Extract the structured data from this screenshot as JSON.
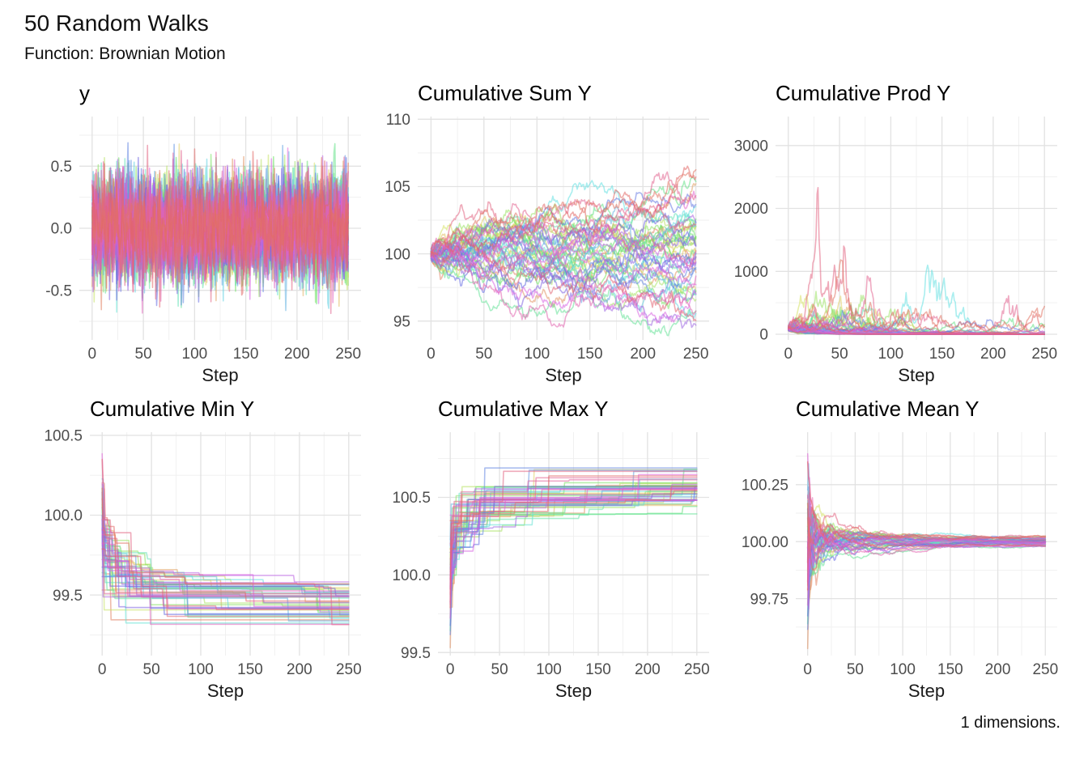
{
  "header": {
    "title": "50 Random Walks",
    "subtitle": "Function: Brownian Motion",
    "caption": "1 dimensions."
  },
  "chart_data": {
    "type": "line",
    "description": "Six-panel grid; each panel overlays the same 50 random-walk series transformed by a cumulative statistic.",
    "x": {
      "label": "Step",
      "ticks": [
        0,
        50,
        100,
        150,
        200,
        250
      ],
      "domain": [
        -12.5,
        262.5
      ]
    },
    "series": {
      "count": 50,
      "steps": 250,
      "generator": "brownian-motion",
      "increment_distribution": "normal(mean 0, sd 0.2)",
      "initial_value": 100,
      "seed": 42,
      "palette": "ggplot-hue-rainbow",
      "line_alpha": 0.55
    },
    "panels": [
      {
        "id": "y",
        "title": "y",
        "stat": "y",
        "y_ticks": {
          "values": [
            -0.5,
            0,
            0.5
          ],
          "labels": [
            "-0.5",
            "0.0",
            "0.5"
          ]
        },
        "y_domain": [
          -0.9,
          0.9
        ]
      },
      {
        "id": "cum_sum",
        "title": "Cumulative Sum Y",
        "stat": "sum",
        "y_ticks": {
          "values": [
            95,
            100,
            105,
            110
          ],
          "labels": [
            "95",
            "100",
            "105",
            "110"
          ]
        },
        "y_domain": [
          93.6,
          110.2
        ]
      },
      {
        "id": "cum_prod",
        "title": "Cumulative Prod Y",
        "stat": "prod",
        "y_ticks": {
          "values": [
            0,
            1000,
            2000,
            3000
          ],
          "labels": [
            "0",
            "1000",
            "2000",
            "3000"
          ]
        },
        "y_domain": [
          -90,
          3460
        ]
      },
      {
        "id": "cum_min",
        "title": "Cumulative Min Y",
        "stat": "min",
        "y_ticks": {
          "values": [
            99.5,
            100,
            100.5
          ],
          "labels": [
            "99.5",
            "100.0",
            "100.5"
          ]
        },
        "y_domain": [
          99.12,
          100.52
        ]
      },
      {
        "id": "cum_max",
        "title": "Cumulative Max Y",
        "stat": "max",
        "y_ticks": {
          "values": [
            99.5,
            100,
            100.5
          ],
          "labels": [
            "99.5",
            "100.0",
            "100.5"
          ]
        },
        "y_domain": [
          99.48,
          100.92
        ]
      },
      {
        "id": "cum_mean",
        "title": "Cumulative Mean Y",
        "stat": "mean",
        "y_ticks": {
          "values": [
            99.75,
            100,
            100.25
          ],
          "labels": [
            "99.75",
            "100.00",
            "100.25"
          ]
        },
        "y_domain": [
          99.5,
          100.48
        ]
      }
    ],
    "colors": {
      "background": "#ffffff",
      "grid_major": "#e2e2e2",
      "grid_minor": "#efefef",
      "tick_label": "#4d4d4d",
      "axis_title": "#1a1a1a",
      "title_text": "#000000"
    }
  }
}
